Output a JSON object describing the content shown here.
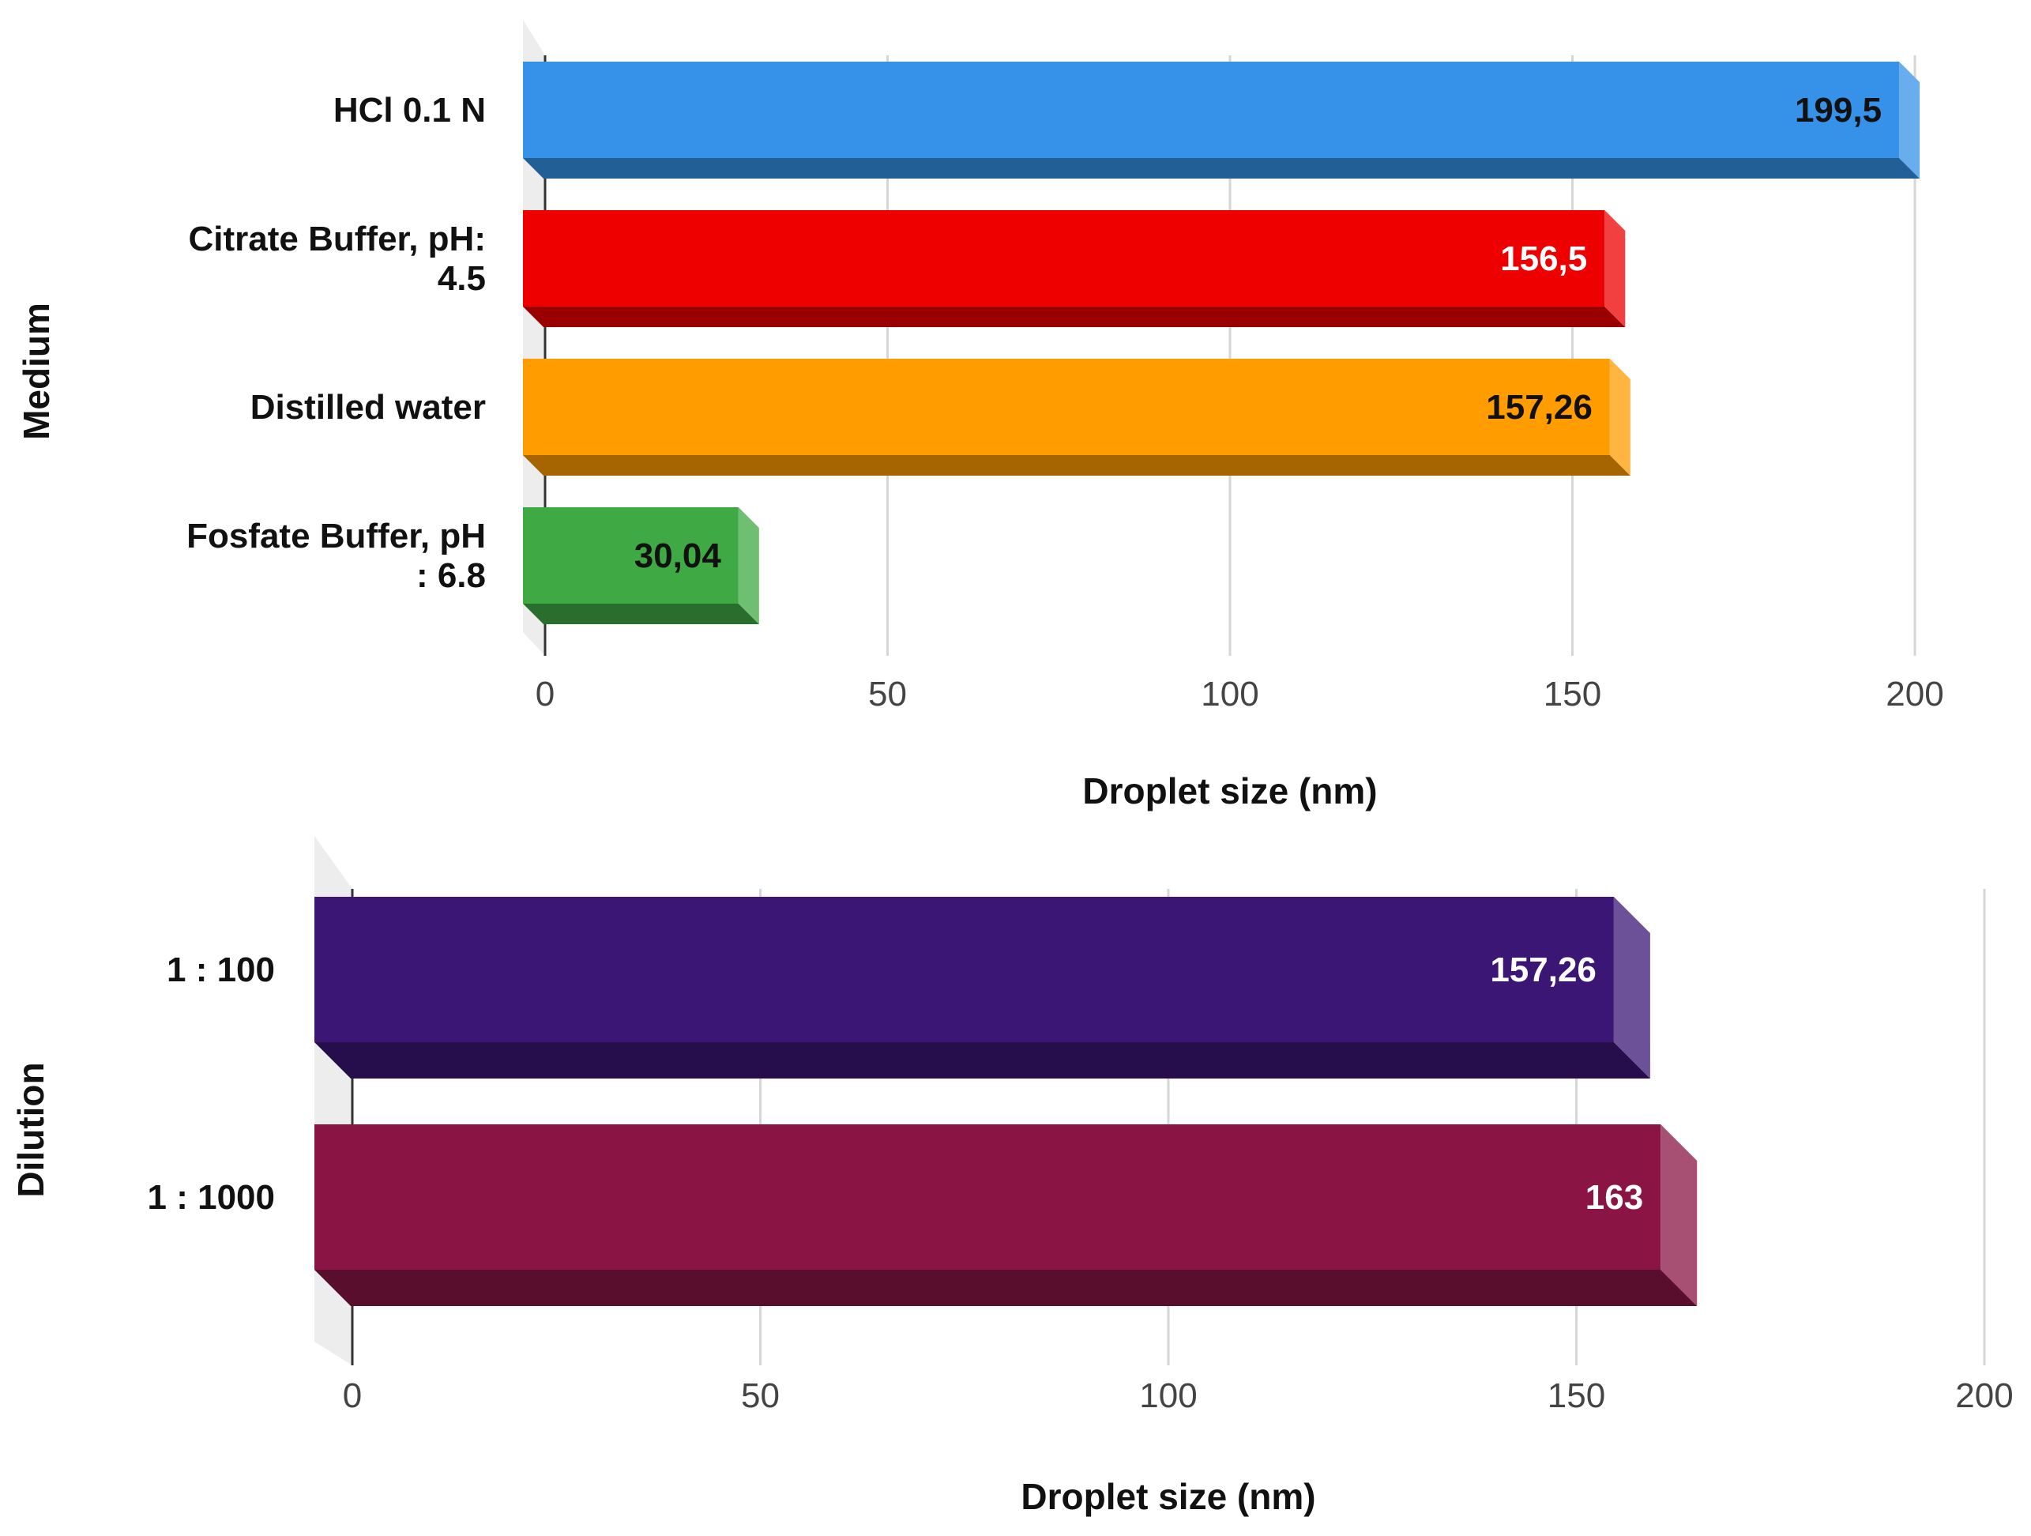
{
  "chart_data": [
    {
      "type": "bar",
      "orientation": "horizontal",
      "categories": [
        "HCl 0.1 N",
        "Citrate Buffer, pH: 4.5",
        "Distilled water",
        "Fosfate Buffer, pH : 6.8"
      ],
      "category_lines": [
        [
          "HCl 0.1 N"
        ],
        [
          "Citrate Buffer, pH:",
          "4.5"
        ],
        [
          "Distilled water"
        ],
        [
          "Fosfate Buffer, pH",
          ": 6.8"
        ]
      ],
      "values": [
        199.5,
        156.5,
        157.26,
        30.04
      ],
      "value_labels": [
        "199,5",
        "156,5",
        "157,26",
        "30,04"
      ],
      "colors": [
        "#3592e8",
        "#ee0000",
        "#ff9c00",
        "#3fa944"
      ],
      "label_colors": [
        "#111111",
        "#ffffff",
        "#111111",
        "#111111"
      ],
      "xlabel": "Droplet size (nm)",
      "ylabel": "Medium",
      "xlim": [
        0,
        200
      ],
      "xticks": [
        0,
        50,
        100,
        150,
        200
      ],
      "grid": true
    },
    {
      "type": "bar",
      "orientation": "horizontal",
      "categories": [
        "1 : 100",
        "1 : 1000"
      ],
      "category_lines": [
        [
          "1 : 100"
        ],
        [
          "1 : 1000"
        ]
      ],
      "values": [
        157.26,
        163
      ],
      "value_labels": [
        "157,26",
        "163"
      ],
      "colors": [
        "#3b1675",
        "#8a1545"
      ],
      "label_colors": [
        "#ffffff",
        "#ffffff"
      ],
      "xlabel": "Droplet size (nm)",
      "ylabel": "Dilution",
      "xlim": [
        0,
        200
      ],
      "xticks": [
        0,
        50,
        100,
        150,
        200
      ],
      "grid": true
    }
  ]
}
